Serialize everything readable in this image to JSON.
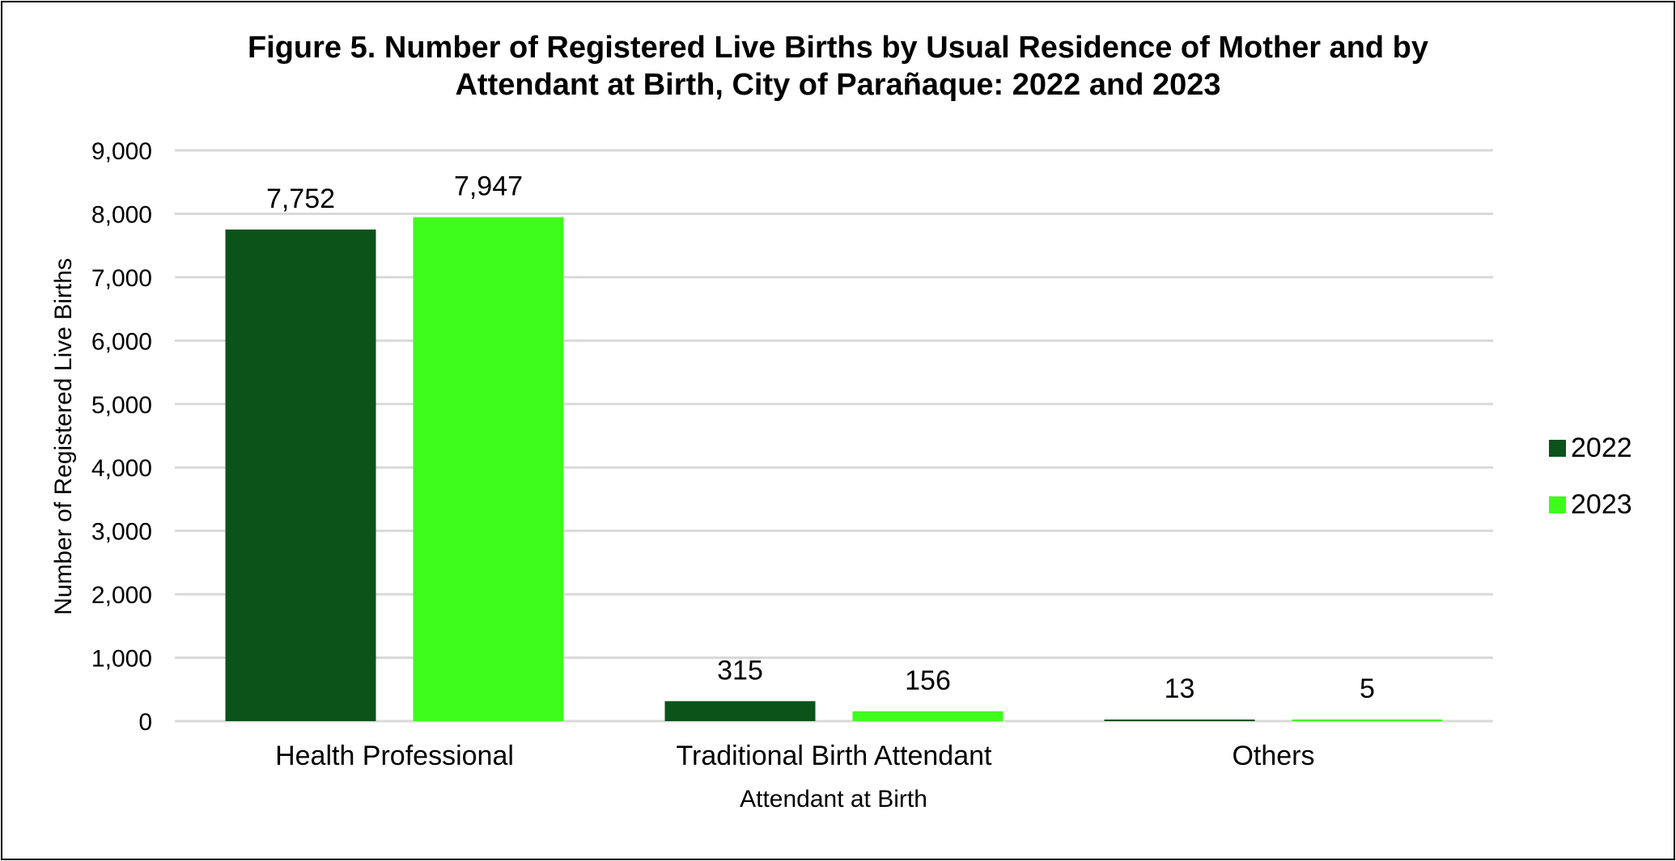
{
  "chart_data": {
    "type": "bar",
    "title_line1": "Figure 5. Number of Registered Live Births by Usual Residence of Mother and by",
    "title_line2": "Attendant at Birth, City of Parañaque: 2022 and 2023",
    "xlabel": "Attendant at Birth",
    "ylabel": "Number of Registered Live Births",
    "categories": [
      "Health Professional",
      "Traditional Birth Attendant",
      "Others"
    ],
    "series": [
      {
        "name": "2022",
        "color": "#0b5319",
        "values": [
          7752,
          315,
          13
        ],
        "labels": [
          "7,752",
          "315",
          "13"
        ]
      },
      {
        "name": "2023",
        "color": "#3efc1b",
        "values": [
          7947,
          156,
          5
        ],
        "labels": [
          "7,947",
          "156",
          "5"
        ]
      }
    ],
    "ylim": [
      0,
      9000
    ],
    "yticks": [
      0,
      1000,
      2000,
      3000,
      4000,
      5000,
      6000,
      7000,
      8000,
      9000
    ],
    "ytick_labels": [
      "0",
      "1,000",
      "2,000",
      "3,000",
      "4,000",
      "5,000",
      "6,000",
      "7,000",
      "8,000",
      "9,000"
    ],
    "grid": true,
    "legend_position": "right"
  }
}
